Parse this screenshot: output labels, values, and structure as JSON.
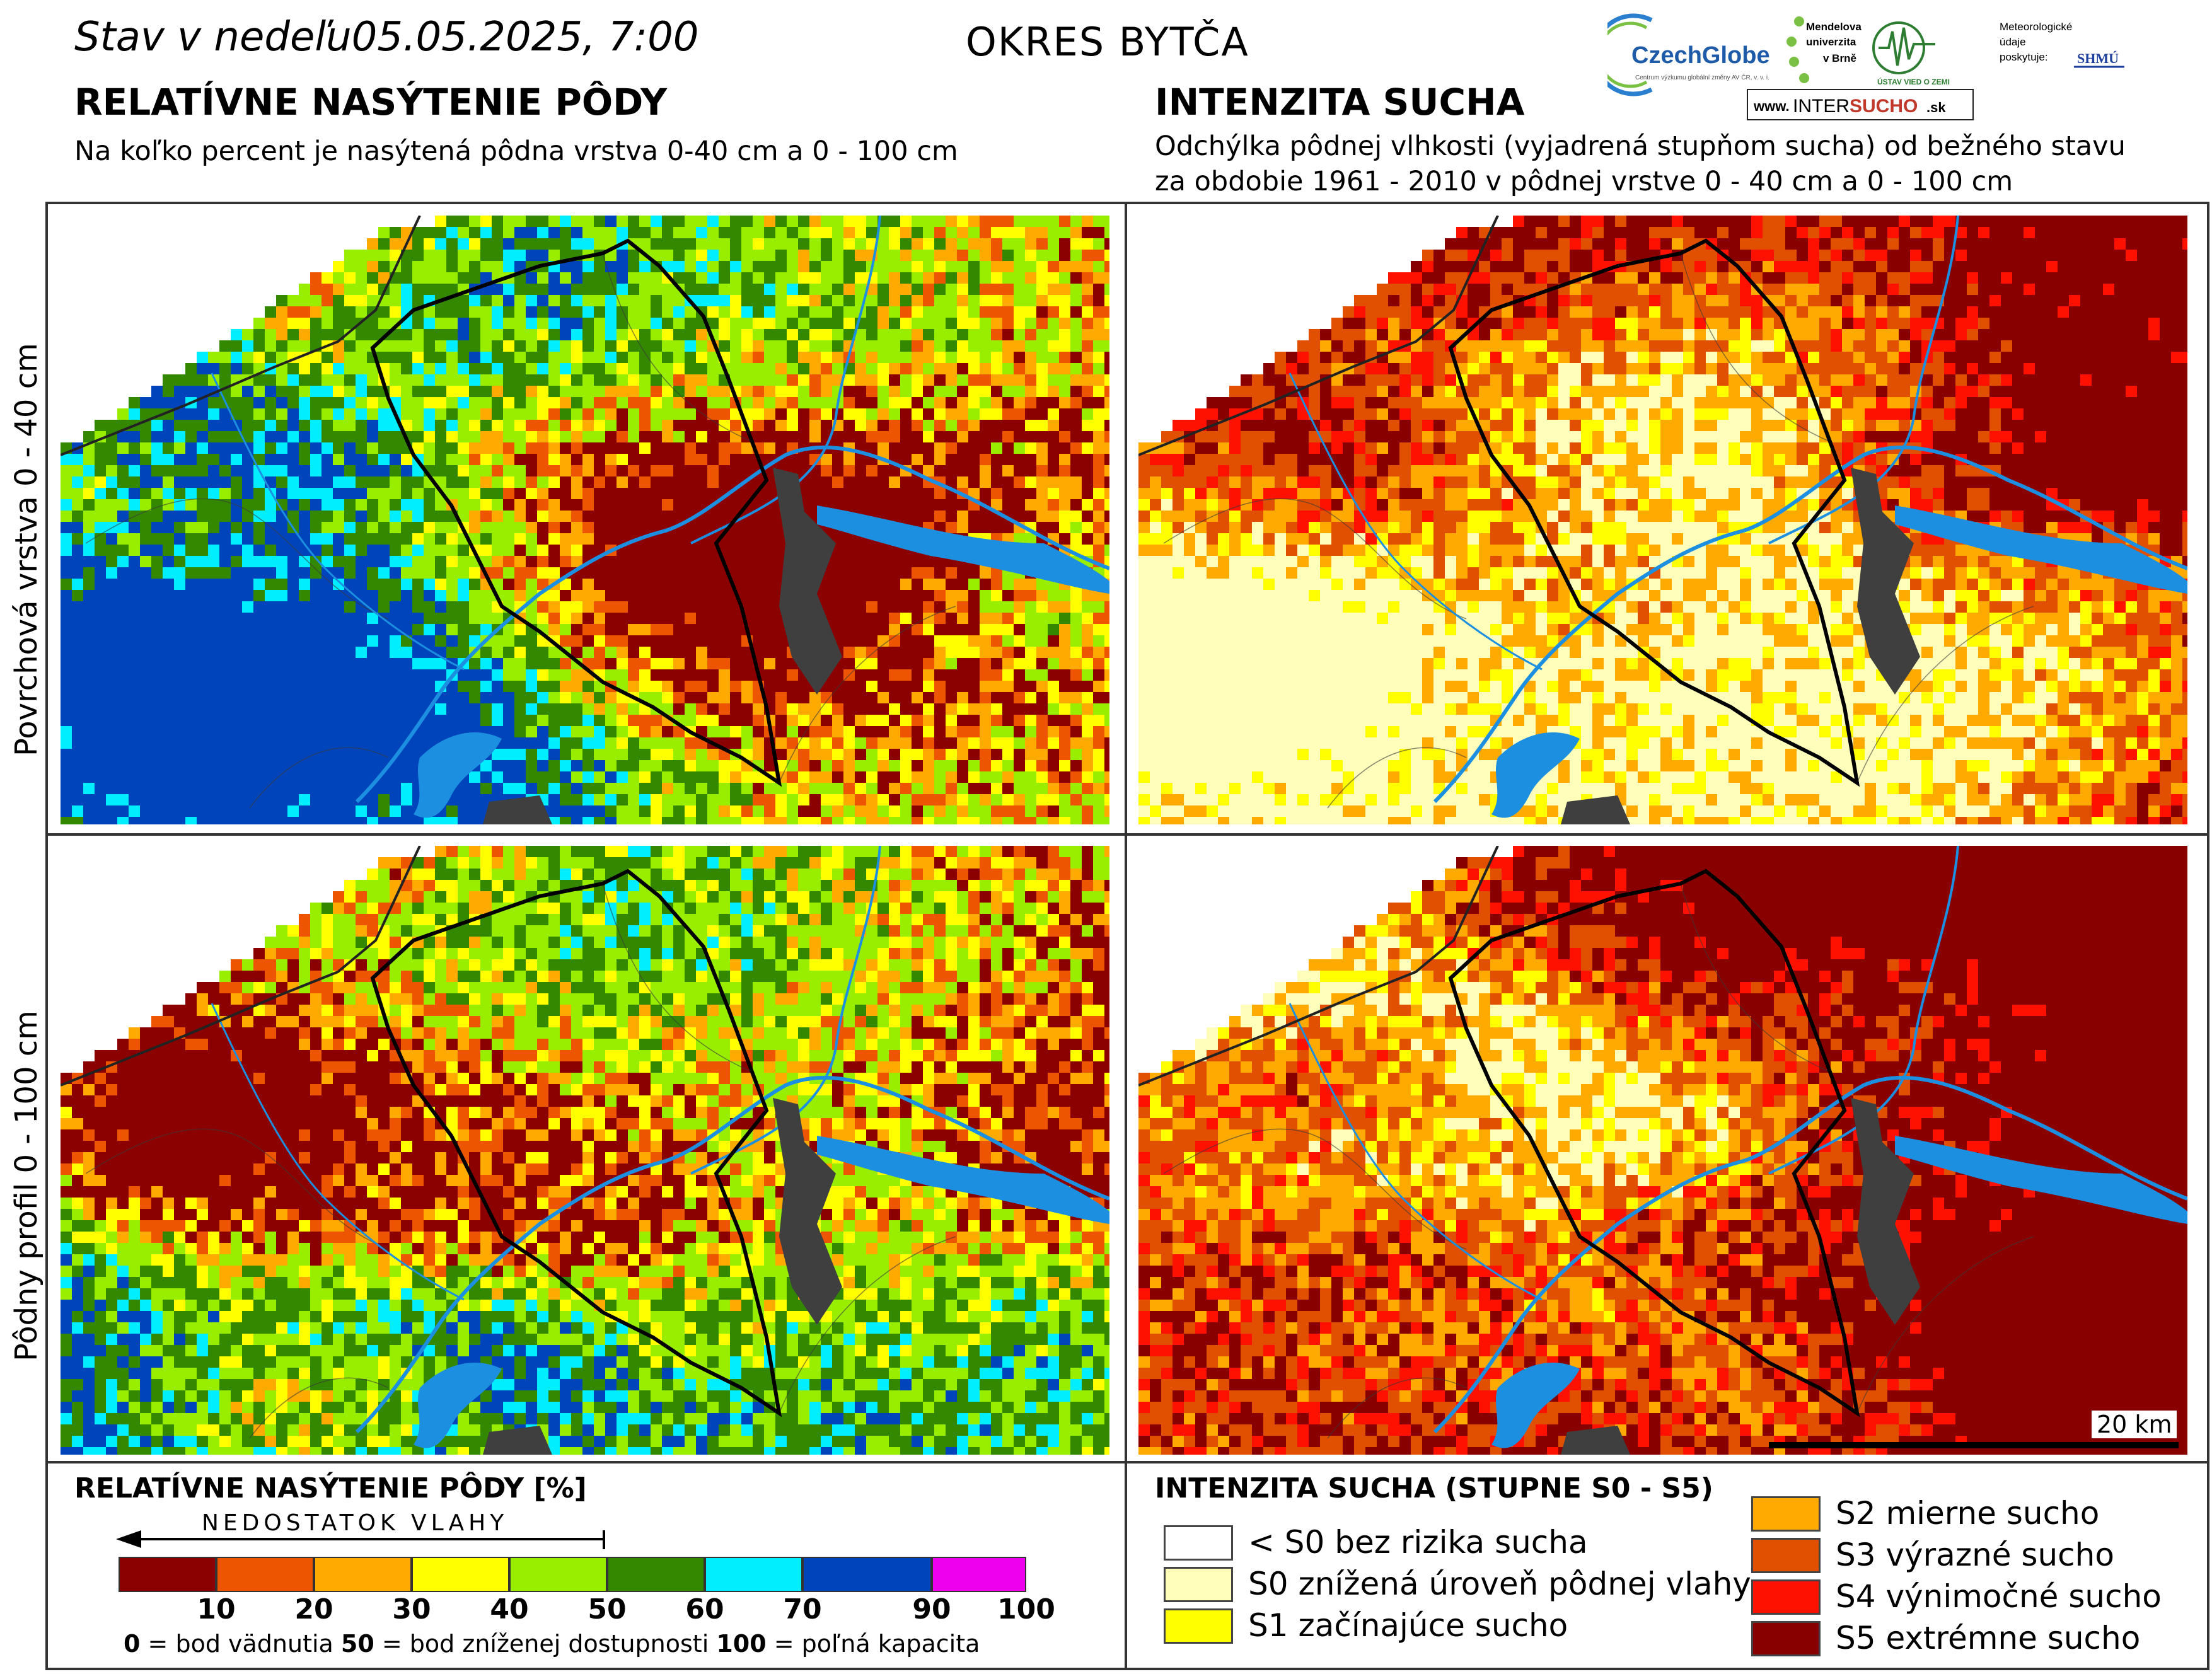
{
  "header": {
    "date_text": "Stav v nedeľu05.05.2025, 7:00",
    "district_title": "OKRES  BYTČA"
  },
  "left_section": {
    "title": "RELATÍVNE NASÝTENIE PÔDY",
    "subtitle": "Na koľko percent je nasýtená pôdna vrstva 0-40 cm a 0 - 100 cm"
  },
  "right_section": {
    "title": "INTENZITA SUCHA",
    "subtitle_line1": "Odchýlka pôdnej vlhkosti (vyjadrená stupňom sucha) od bežného stavu",
    "subtitle_line2": "za obdobie 1961 - 2010 v pôdnej vrstve 0 - 40 cm a 0 - 100 cm"
  },
  "row_labels": {
    "top": "Povrchová vrstva 0 - 40 cm",
    "bottom": "Pôdny profil 0 - 100 cm"
  },
  "logos": {
    "czechglobe": "CzechGlobe",
    "czechglobe_small": "Centrum výzkumu globální změny AV ČR, v. v. i.",
    "mendel": "Mendelova univerzita v Brně",
    "uvz": "ÚSTAV VIED O ZEMI",
    "meteo": "Meteorologické údaje poskytuje:",
    "shmu": "SHMÚ",
    "intersucho_prefix": "www.",
    "intersucho_a": "INTER",
    "intersucho_b": "SUCHO",
    "intersucho_suffix": ".sk"
  },
  "scale_bar": {
    "label": "20 km"
  },
  "saturation_legend": {
    "title": "RELATÍVNE NASÝTENIE PÔDY [%]",
    "arrow_label": "NEDOSTATOK VLAHY",
    "bins": [
      {
        "color": "#8b0000"
      },
      {
        "color": "#ee5500"
      },
      {
        "color": "#ffaa00"
      },
      {
        "color": "#ffff00"
      },
      {
        "color": "#99ee00"
      },
      {
        "color": "#338800"
      },
      {
        "color": "#00eeff"
      },
      {
        "color": "#0044bb"
      },
      {
        "color": "#ee00ee"
      }
    ],
    "ticks": [
      "10",
      "20",
      "30",
      "40",
      "50",
      "60",
      "70",
      "90",
      "100"
    ],
    "footnote_parts": [
      "0",
      " = bod vädnutia  ",
      "50",
      " = bod zníženej dostupnosti  ",
      "100",
      " = poľná kapacita"
    ]
  },
  "drought_legend": {
    "title": "INTENZITA SUCHA (STUPNE S0 - S5)",
    "items": [
      {
        "label": "< S0 bez rizika sucha",
        "color": "#ffffff"
      },
      {
        "label": "S0 znížená úroveň pôdnej vlahy",
        "color": "#ffffbb"
      },
      {
        "label": "S1 začínajúce sucho",
        "color": "#ffff00"
      },
      {
        "label": "S2 mierne sucho",
        "color": "#ffaa00"
      },
      {
        "label": "S3 výrazné sucho",
        "color": "#e05000"
      },
      {
        "label": "S4 výnimočné sucho",
        "color": "#ff1100"
      },
      {
        "label": "S5 extrémne sucho",
        "color": "#880000"
      }
    ]
  }
}
